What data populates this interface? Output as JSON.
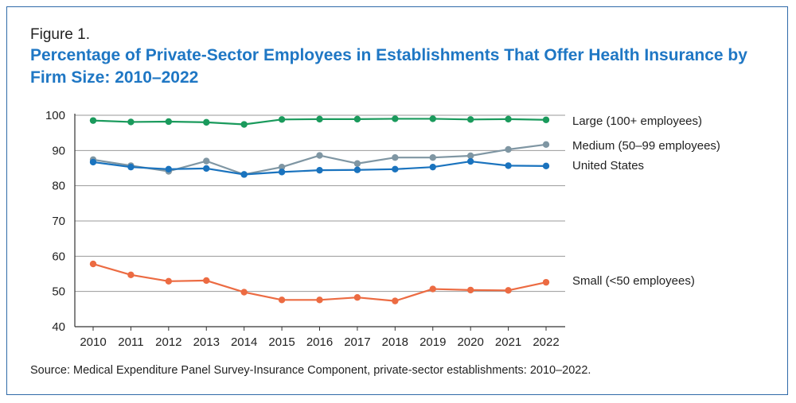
{
  "figure_label": "Figure 1.",
  "title": "Percentage of Private-Sector Employees in Establishments That Offer Health Insurance by Firm Size: 2010–2022",
  "source": "Source: Medical Expenditure Panel Survey-Insurance Component, private-sector establishments: 2010–2022.",
  "colors": {
    "title": "#1f77c4",
    "large": "#1a9a5c",
    "medium": "#7f96a3",
    "united_states": "#1a73be",
    "small": "#ec6b42",
    "border": "#2f6aa8"
  },
  "chart_data": {
    "type": "line",
    "title": "Percentage of Private-Sector Employees in Establishments That Offer Health Insurance by Firm Size: 2010–2022",
    "xlabel": "",
    "ylabel": "",
    "x": [
      "2010",
      "2011",
      "2012",
      "2013",
      "2014",
      "2015",
      "2016",
      "2017",
      "2018",
      "2019",
      "2020",
      "2021",
      "2022"
    ],
    "ylim": [
      40,
      100
    ],
    "yticks": [
      40,
      50,
      60,
      70,
      80,
      90,
      100
    ],
    "grid": true,
    "series": [
      {
        "key": "large",
        "name": "Large (100+ employees)",
        "values": [
          98.5,
          98.1,
          98.2,
          98.0,
          97.4,
          98.8,
          98.9,
          98.9,
          99.0,
          99.0,
          98.8,
          98.9,
          98.7
        ]
      },
      {
        "key": "medium",
        "name": "Medium (50–99 employees)",
        "values": [
          87.4,
          85.7,
          84.1,
          87.0,
          83.2,
          85.3,
          88.6,
          86.3,
          88.0,
          88.0,
          88.5,
          90.3,
          91.7
        ]
      },
      {
        "key": "united_states",
        "name": "United States",
        "values": [
          86.7,
          85.3,
          84.7,
          84.9,
          83.2,
          83.9,
          84.4,
          84.5,
          84.7,
          85.3,
          86.9,
          85.7,
          85.6
        ]
      },
      {
        "key": "small",
        "name": "Small (<50 employees)",
        "values": [
          57.8,
          54.7,
          52.9,
          53.1,
          49.8,
          47.6,
          47.6,
          48.3,
          47.3,
          50.7,
          50.4,
          50.3,
          52.6
        ]
      }
    ]
  }
}
